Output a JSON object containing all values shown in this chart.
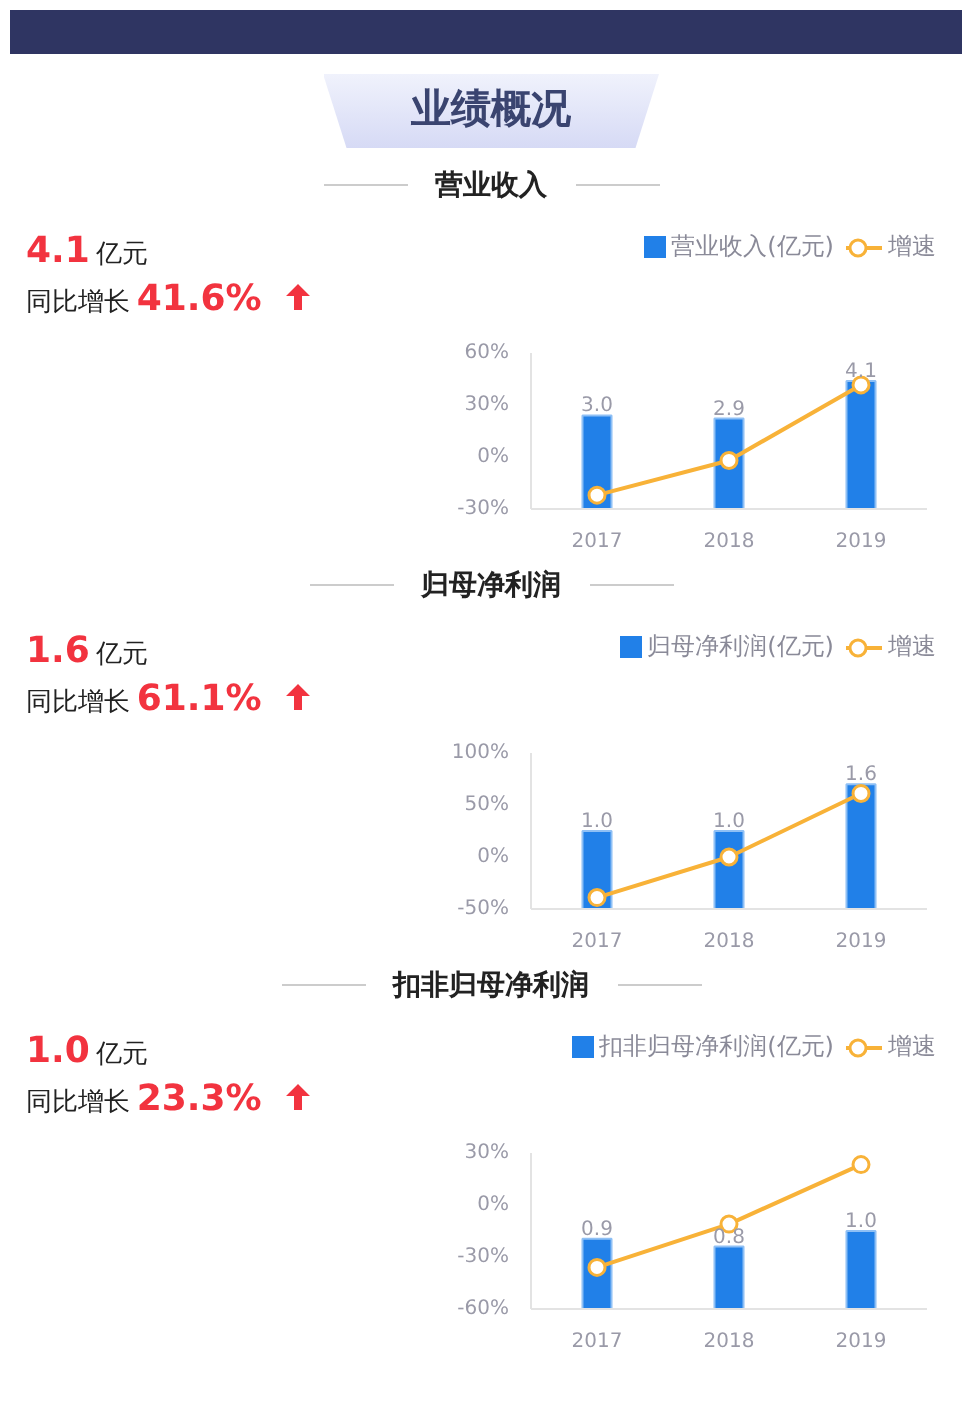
{
  "chart_data": [
    {
      "type": "bar",
      "title": "业绩概况",
      "subtitle": "营业收入",
      "categories": [
        "2017",
        "2018",
        "2019"
      ],
      "series": [
        {
          "name": "营业收入(亿元)",
          "axis": "y2",
          "color": "#2180e8",
          "values": [
            3.0,
            2.9,
            4.1
          ],
          "value_labels": [
            "3.0",
            "2.9",
            "4.1"
          ]
        },
        {
          "name": "增速",
          "type": "line",
          "color": "#f8b238",
          "values": [
            -22,
            -2,
            41.6
          ]
        }
      ],
      "ylim": [
        -30,
        60
      ],
      "yticks": [
        {
          "value": -30,
          "label": "-30%"
        },
        {
          "value": 0,
          "label": "0%"
        },
        {
          "value": 30,
          "label": "30%"
        },
        {
          "value": 60,
          "label": "60%"
        }
      ],
      "y2lim": [
        0,
        5
      ],
      "legend": "top right",
      "marker": "circle",
      "annotations": [
        "4.1",
        "亿元",
        "同比增长",
        "41.6%"
      ]
    },
    {
      "type": "bar",
      "title": "归母净利润",
      "categories": [
        "2017",
        "2018",
        "2019"
      ],
      "series": [
        {
          "name": "归母净利润(亿元)",
          "axis": "y2",
          "color": "#2180e8",
          "values": [
            1.0,
            1.0,
            1.6
          ],
          "value_labels": [
            "1.0",
            "1.0",
            "1.6"
          ]
        },
        {
          "name": "增速",
          "type": "line",
          "color": "#f8b238",
          "values": [
            -39,
            0,
            61.1
          ]
        }
      ],
      "ylim": [
        -50,
        100
      ],
      "yticks": [
        {
          "value": -50,
          "label": "-50%"
        },
        {
          "value": 0,
          "label": "0%"
        },
        {
          "value": 50,
          "label": "50%"
        },
        {
          "value": 100,
          "label": "100%"
        }
      ],
      "y2lim": [
        0,
        2
      ],
      "legend": "top right",
      "marker": "circle",
      "annotations": [
        "1.6",
        "亿元",
        "同比增长",
        "61.1%"
      ]
    },
    {
      "type": "bar",
      "title": "扣非归母净利润",
      "categories": [
        "2017",
        "2018",
        "2019"
      ],
      "series": [
        {
          "name": "扣非归母净利润(亿元)",
          "axis": "y2",
          "color": "#2180e8",
          "values": [
            0.9,
            0.8,
            1.0
          ],
          "value_labels": [
            "0.9",
            "0.8",
            "1.0"
          ]
        },
        {
          "name": "增速",
          "type": "line",
          "color": "#f8b238",
          "values": [
            -36,
            -11,
            23.3
          ]
        }
      ],
      "ylim": [
        -60,
        30
      ],
      "yticks": [
        {
          "value": -60,
          "label": "-60%"
        },
        {
          "value": -30,
          "label": "-30%"
        },
        {
          "value": 0,
          "label": "0%"
        },
        {
          "value": 30,
          "label": "30%"
        }
      ],
      "y2lim": [
        0,
        2
      ],
      "legend": "top right",
      "marker": "circle",
      "annotations": [
        "1.0",
        "亿元",
        "同比增长",
        "23.3%"
      ]
    }
  ]
}
